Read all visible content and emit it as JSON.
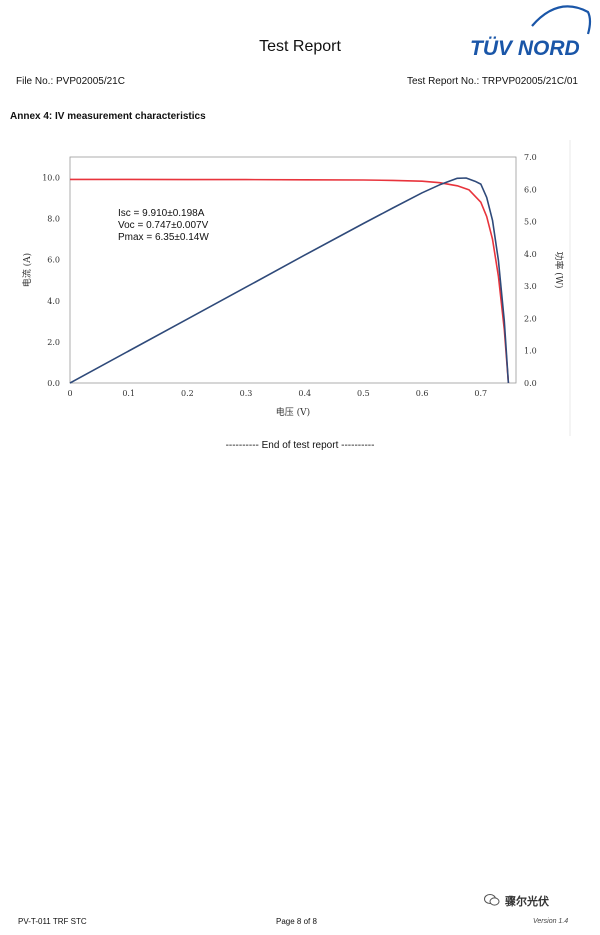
{
  "header": {
    "title": "Test Report",
    "logo_text": "TÜV NORD",
    "file_no": "File No.: PVP02005/21C",
    "report_no": "Test Report No.: TRPVP02005/21C/01"
  },
  "section": {
    "annex_title": "Annex 4: IV measurement characteristics"
  },
  "chart_data": {
    "type": "line",
    "xlabel": "电压 (V)",
    "ylabel_left": "电流 (A)",
    "ylabel_right": "功率 (W)",
    "xlim": [
      0,
      0.76
    ],
    "ylim_left": [
      0,
      11
    ],
    "ylim_right": [
      0,
      7
    ],
    "x_ticks": [
      "0",
      "0.1",
      "0.2",
      "0.3",
      "0.4",
      "0.5",
      "0.6",
      "0.7"
    ],
    "y_left_ticks": [
      "0.0",
      "2.0",
      "4.0",
      "6.0",
      "8.0",
      "10.0"
    ],
    "y_right_ticks": [
      "0.0",
      "1.0",
      "2.0",
      "3.0",
      "4.0",
      "5.0",
      "6.0",
      "7.0"
    ],
    "annotations": [
      "Isc = 9.910±0.198A",
      "Voc = 0.747±0.007V",
      "Pmax = 6.35±0.14W"
    ],
    "series": [
      {
        "color": "#e8343c",
        "axis": "left",
        "x": [
          0,
          0.1,
          0.2,
          0.3,
          0.4,
          0.5,
          0.55,
          0.6,
          0.63,
          0.66,
          0.68,
          0.7,
          0.71,
          0.72,
          0.73,
          0.74,
          0.747
        ],
        "y": [
          9.91,
          9.91,
          9.9,
          9.9,
          9.89,
          9.88,
          9.86,
          9.82,
          9.75,
          9.6,
          9.4,
          8.8,
          8.1,
          7.0,
          5.2,
          2.6,
          0
        ]
      },
      {
        "color": "#2f4a7a",
        "axis": "right",
        "x": [
          0,
          0.1,
          0.2,
          0.3,
          0.4,
          0.5,
          0.55,
          0.6,
          0.63,
          0.66,
          0.675,
          0.69,
          0.7,
          0.71,
          0.72,
          0.73,
          0.74,
          0.747
        ],
        "y": [
          0,
          0.99,
          1.98,
          2.97,
          3.96,
          4.94,
          5.42,
          5.89,
          6.14,
          6.34,
          6.35,
          6.25,
          6.16,
          5.75,
          5.04,
          3.8,
          1.92,
          0
        ]
      }
    ]
  },
  "end_text": "---------- End of test report ----------",
  "footer": {
    "left": "PV-T-011 TRF STC",
    "center": "Page 8 of 8",
    "watermark": "骤尔光伏",
    "version": "Version 1.4"
  },
  "colors": {
    "logo_blue": "#1a56a8"
  }
}
